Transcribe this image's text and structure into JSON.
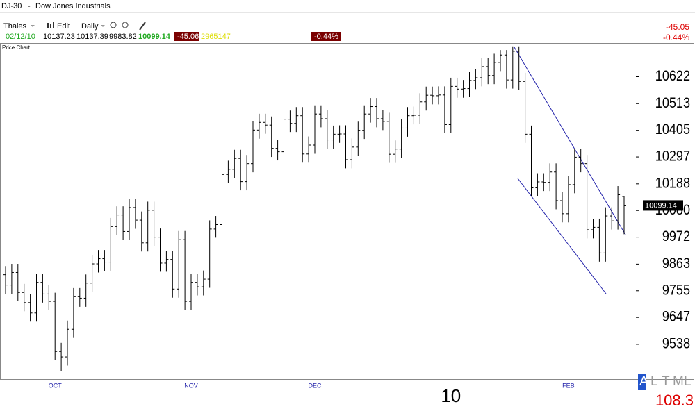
{
  "header": {
    "symbol": "DJ-30",
    "separator": "-",
    "name": "Dow Jones Industrials",
    "account": "Thales",
    "edit": "Edit",
    "interval": "Daily",
    "date": "02/12/10",
    "change": "-45.06",
    "volume": "2965147",
    "change_pct": "-0.44%",
    "right_change": "-45.05",
    "right_change_pct": "-0.44%",
    "panel": "Price Chart",
    "modes": [
      "A",
      "L",
      "T",
      "M",
      "L"
    ],
    "corner_value": "108.3"
  },
  "chart_data": {
    "type": "ohlc",
    "categories": [
      null,
      null,
      null,
      null,
      null,
      null,
      null,
      null,
      "OCT",
      null,
      null,
      null,
      null,
      null,
      null,
      null,
      null,
      null,
      null,
      null,
      null,
      null,
      null,
      null,
      null,
      null,
      null,
      null,
      null,
      null,
      "NOV",
      null,
      null,
      null,
      null,
      null,
      null,
      null,
      null,
      null,
      null,
      null,
      null,
      null,
      null,
      null,
      null,
      null,
      null,
      null,
      "DEC",
      null,
      null,
      null,
      null,
      null,
      null,
      null,
      null,
      null,
      null,
      null,
      null,
      null,
      null,
      null,
      null,
      null,
      null,
      null,
      null,
      null,
      "10",
      null,
      null,
      null,
      null,
      null,
      null,
      null,
      null,
      null,
      null,
      null,
      null,
      null,
      null,
      null,
      null,
      null,
      null,
      "FEB",
      null,
      null,
      null,
      null,
      null,
      null,
      null,
      null,
      null
    ],
    "open": [
      9820,
      9778,
      9829,
      9748,
      9707,
      9665,
      9789,
      9742,
      9712,
      9509,
      9487,
      9599,
      9731,
      9725,
      9786,
      9864,
      9885,
      9871,
      10015,
      10062,
      9995,
      10092,
      10041,
      9949,
      10081,
      9972,
      9867,
      9882,
      9762,
      9962,
      9712,
      9789,
      9771,
      9802,
      10005,
      10023,
      10226,
      10247,
      10291,
      10197,
      10270,
      10406,
      10437,
      10426,
      10332,
      10318,
      10450,
      10433,
      10464,
      10309,
      10345,
      10471,
      10452,
      10366,
      10389,
      10390,
      10286,
      10337,
      10405,
      10471,
      10501,
      10452,
      10441,
      10308,
      10329,
      10414,
      10464,
      10466,
      10520,
      10547,
      10545,
      10548,
      10428,
      10583,
      10572,
      10574,
      10607,
      10618,
      10663,
      10627,
      10680,
      10710,
      10609,
      10725,
      10603,
      10389,
      10172,
      10196,
      10194,
      10236,
      10120,
      10067,
      10185,
      10296,
      10270,
      10002,
      10012,
      9908,
      10058,
      10038,
      10137.23
    ],
    "high": [
      9855,
      9864,
      9864,
      9783,
      9742,
      9824,
      9824,
      9777,
      9747,
      9544,
      9634,
      9766,
      9766,
      9821,
      9899,
      9920,
      9920,
      10050,
      10097,
      10097,
      10127,
      10127,
      10076,
      10116,
      10116,
      10007,
      9917,
      9917,
      9997,
      9997,
      9824,
      9824,
      9837,
      10040,
      10058,
      10261,
      10282,
      10326,
      10326,
      10305,
      10441,
      10472,
      10472,
      10461,
      10367,
      10485,
      10485,
      10499,
      10499,
      10380,
      10506,
      10506,
      10487,
      10424,
      10425,
      10425,
      10372,
      10440,
      10506,
      10536,
      10536,
      10487,
      10476,
      10364,
      10449,
      10499,
      10501,
      10555,
      10582,
      10582,
      10583,
      10583,
      10618,
      10618,
      10609,
      10642,
      10653,
      10698,
      10698,
      10715,
      10730,
      10730,
      10745,
      10745,
      10638,
      10424,
      10231,
      10231,
      10271,
      10271,
      10155,
      10220,
      10331,
      10331,
      10305,
      10047,
      10047,
      10093,
      10093,
      10179,
      10137.39
    ],
    "low": [
      9743,
      9743,
      9713,
      9672,
      9630,
      9630,
      9707,
      9677,
      9474,
      9430,
      9452,
      9564,
      9690,
      9690,
      9751,
      9829,
      9836,
      9836,
      9980,
      9960,
      9960,
      10006,
      9914,
      9914,
      9937,
      9832,
      9832,
      9727,
      9727,
      9677,
      9677,
      9736,
      9736,
      9767,
      9970,
      9988,
      10191,
      10212,
      10162,
      10162,
      10235,
      10371,
      10391,
      10297,
      10283,
      10283,
      10398,
      10398,
      10274,
      10274,
      10310,
      10417,
      10331,
      10331,
      10354,
      10251,
      10251,
      10302,
      10370,
      10436,
      10417,
      10406,
      10273,
      10273,
      10294,
      10379,
      10429,
      10431,
      10485,
      10510,
      10510,
      10393,
      10393,
      10537,
      10537,
      10539,
      10572,
      10583,
      10592,
      10592,
      10645,
      10574,
      10574,
      10568,
      10354,
      10137,
      10137,
      10159,
      10159,
      10085,
      10032,
      10032,
      10150,
      10235,
      9967,
      9967,
      9873,
      9873,
      10003,
      10003,
      9983.82
    ],
    "close": [
      9778,
      9829,
      9748,
      9707,
      9665,
      9789,
      9742,
      9712,
      9509,
      9487,
      9599,
      9731,
      9725,
      9786,
      9864,
      9885,
      9871,
      10015,
      10062,
      9995,
      10092,
      10041,
      9949,
      10081,
      9972,
      9867,
      9882,
      9762,
      9962,
      9712,
      9789,
      9771,
      9802,
      10005,
      10023,
      10226,
      10247,
      10291,
      10197,
      10270,
      10406,
      10437,
      10426,
      10332,
      10318,
      10450,
      10433,
      10464,
      10309,
      10345,
      10471,
      10452,
      10366,
      10389,
      10390,
      10286,
      10337,
      10405,
      10471,
      10501,
      10452,
      10441,
      10308,
      10329,
      10414,
      10464,
      10466,
      10520,
      10547,
      10545,
      10548,
      10428,
      10583,
      10572,
      10574,
      10607,
      10618,
      10663,
      10627,
      10680,
      10710,
      10609,
      10725,
      10603,
      10389,
      10172,
      10196,
      10194,
      10236,
      10120,
      10067,
      10185,
      10296,
      10270,
      10002,
      10012,
      9908,
      10058,
      10038,
      10144,
      10099.14
    ],
    "color": "#000000",
    "ylim": [
      9400,
      10750
    ],
    "yticks": [
      9538,
      9647,
      9755,
      9863,
      9972,
      10080,
      10188,
      10297,
      10405,
      10513,
      10622
    ]
  }
}
